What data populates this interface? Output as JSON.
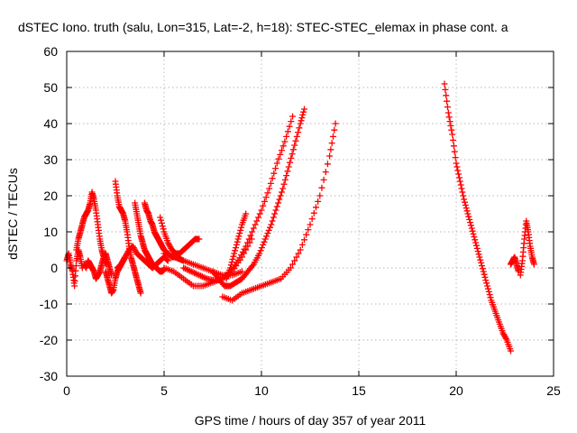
{
  "chart_data": {
    "type": "scatter",
    "title": "dSTEC Iono. truth (salu, Lon=315, Lat=-2, h=18): STEC-STEC_elemax in phase cont. a",
    "xlabel": "GPS time / hours of day 357 of year 2011",
    "ylabel": "dSTEC  / TECUs",
    "xlim": [
      0,
      25
    ],
    "ylim": [
      -30,
      60
    ],
    "xticks": [
      0,
      5,
      10,
      15,
      20,
      25
    ],
    "yticks": [
      -30,
      -20,
      -10,
      0,
      10,
      20,
      30,
      40,
      50,
      60
    ],
    "xtick_labels": [
      "0",
      "5",
      "10",
      "15",
      "20",
      "25"
    ],
    "ytick_labels": [
      "-30",
      "-20",
      "-10",
      "0",
      "10",
      "20",
      "30",
      "40",
      "50",
      "60"
    ],
    "grid": true,
    "marker": "+",
    "series_color": "#ff0000",
    "series": [
      {
        "x": [
          0.0,
          0.1,
          0.2,
          0.3,
          0.4,
          0.5,
          0.6,
          0.7,
          0.8
        ],
        "y": [
          2,
          4,
          1,
          -1,
          -5,
          2,
          5,
          3,
          0
        ]
      },
      {
        "x": [
          0.5,
          0.6,
          0.7,
          0.8,
          0.9,
          1.0,
          1.1,
          1.2,
          1.3,
          1.4,
          1.5,
          1.6,
          1.7,
          1.8,
          1.9,
          2.0
        ],
        "y": [
          5,
          8,
          10,
          12,
          14,
          15,
          16,
          18,
          21,
          19,
          16,
          12,
          8,
          5,
          3,
          1
        ]
      },
      {
        "x": [
          0.9,
          1.0,
          1.1,
          1.2,
          1.3,
          1.4,
          1.5,
          1.6,
          1.7,
          1.8,
          1.9,
          2.0,
          2.1,
          2.2,
          2.3
        ],
        "y": [
          1,
          0,
          2,
          1,
          0,
          -1,
          -3,
          -2,
          -1,
          1,
          3,
          4,
          2,
          0,
          -2
        ]
      },
      {
        "x": [
          2.0,
          2.1,
          2.2,
          2.3,
          2.4,
          2.5,
          2.6,
          2.7,
          2.8,
          2.9,
          3.0
        ],
        "y": [
          -1,
          -3,
          -5,
          -7,
          -6,
          -3,
          -1,
          0,
          1,
          2,
          3
        ]
      },
      {
        "x": [
          2.5,
          2.6,
          2.7,
          2.8,
          2.9,
          3.0,
          3.1,
          3.2,
          3.3,
          3.4,
          3.5,
          3.6,
          3.7,
          3.8
        ],
        "y": [
          24,
          20,
          17,
          16,
          15,
          13,
          10,
          6,
          3,
          1,
          -1,
          -3,
          -5,
          -7
        ]
      },
      {
        "x": [
          2.6,
          2.8,
          3.0,
          3.2,
          3.4,
          3.6,
          3.8,
          4.0,
          4.2,
          4.4,
          4.6,
          4.8,
          5.0,
          5.2
        ],
        "y": [
          0,
          1,
          3,
          5,
          6,
          4,
          3,
          2,
          1,
          0,
          1,
          2,
          3,
          2
        ]
      },
      {
        "x": [
          3.5,
          3.6,
          3.7,
          3.8,
          3.9,
          4.0,
          4.1,
          4.2,
          4.3,
          4.4,
          4.5,
          4.6,
          4.7,
          4.8,
          4.9,
          5.0
        ],
        "y": [
          18,
          15,
          12,
          9,
          7,
          5,
          4,
          3,
          2,
          1,
          0.5,
          0,
          -0.5,
          -1,
          -1,
          -0.5
        ]
      },
      {
        "x": [
          4.0,
          4.1,
          4.2,
          4.3,
          4.4,
          4.5,
          4.6,
          4.7,
          4.8,
          4.9,
          5.0,
          5.2,
          5.4,
          5.6,
          5.8,
          6.0
        ],
        "y": [
          18,
          16,
          15,
          13,
          12,
          10,
          9,
          8,
          7,
          6,
          5,
          4,
          3,
          3,
          2.5,
          2
        ]
      },
      {
        "x": [
          4.8,
          5.0,
          5.2,
          5.4,
          5.6,
          5.8,
          6.0,
          6.2,
          6.4,
          6.6,
          6.8
        ],
        "y": [
          14,
          10,
          7,
          5,
          4,
          4,
          5,
          6,
          7,
          8,
          8
        ]
      },
      {
        "x": [
          5.0,
          5.5,
          6.0,
          6.5,
          7.0,
          7.5,
          8.0,
          8.5,
          9.0
        ],
        "y": [
          4,
          3,
          2,
          1,
          0,
          -1,
          -2,
          -2,
          -1
        ]
      },
      {
        "x": [
          5.0,
          5.5,
          6.0,
          6.5,
          7.0,
          7.5,
          8.0,
          8.5,
          9.0,
          9.5
        ],
        "y": [
          0,
          -1,
          -3,
          -5,
          -5,
          -4,
          -3,
          -1,
          3,
          8
        ]
      },
      {
        "x": [
          6.0,
          6.4,
          6.8,
          7.2,
          7.6,
          8.0,
          8.4,
          8.8,
          9.2,
          9.6,
          10.0,
          10.4,
          10.8,
          11.2,
          11.6
        ],
        "y": [
          0,
          -1,
          -2,
          -3,
          -3.5,
          -3,
          -1,
          2,
          6,
          11,
          16,
          22,
          29,
          35,
          42
        ]
      },
      {
        "x": [
          7.5,
          7.8,
          8.1,
          8.4,
          8.7,
          9.0,
          9.3,
          9.6,
          9.9,
          10.2,
          10.5,
          10.8,
          11.1,
          11.4,
          11.7,
          12.0,
          12.2
        ],
        "y": [
          -1,
          -3,
          -5,
          -5,
          -4,
          -3,
          -1,
          1,
          4,
          8,
          12,
          17,
          22,
          28,
          34,
          40,
          44
        ]
      },
      {
        "x": [
          8.0,
          8.5,
          9.0,
          9.5,
          10.0,
          10.5,
          11.0,
          11.5,
          12.0,
          12.5,
          13.0,
          13.5,
          13.8
        ],
        "y": [
          -8,
          -9,
          -7,
          -6,
          -5,
          -4,
          -3,
          0,
          5,
          12,
          20,
          31,
          40
        ]
      },
      {
        "x": [
          8.2,
          8.4,
          8.6,
          8.8,
          9.0,
          9.2
        ],
        "y": [
          -3,
          0,
          4,
          8,
          12,
          15
        ]
      },
      {
        "x": [
          19.4,
          19.6,
          19.8,
          20.0,
          20.2,
          20.4,
          20.6,
          20.8,
          21.0,
          21.2,
          21.4,
          21.6,
          21.8,
          22.0,
          22.2,
          22.4,
          22.6,
          22.8
        ],
        "y": [
          51,
          43,
          37,
          29,
          24,
          19,
          15,
          11,
          7,
          3,
          -1,
          -5,
          -9,
          -12,
          -15,
          -18,
          -20,
          -23
        ]
      },
      {
        "x": [
          22.8,
          22.9,
          23.0,
          23.1,
          23.2
        ],
        "y": [
          1,
          2,
          3,
          1,
          -1
        ]
      },
      {
        "x": [
          23.3,
          23.4,
          23.5,
          23.6,
          23.7,
          23.8,
          23.9,
          24.0
        ],
        "y": [
          -2,
          2,
          8,
          13,
          10,
          6,
          3,
          1
        ]
      }
    ]
  }
}
